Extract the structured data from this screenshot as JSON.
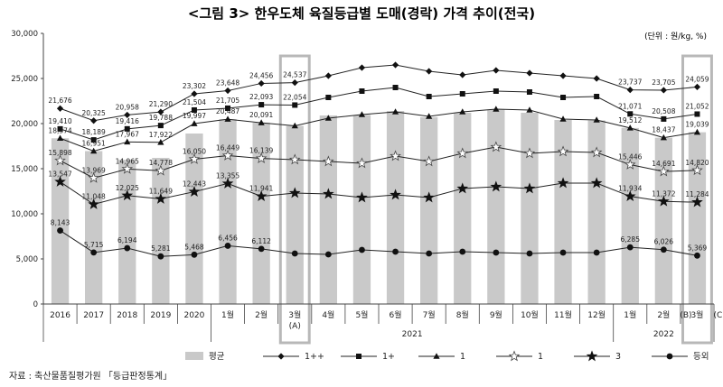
{
  "title": "<그림 3> 한우도체 육질등급별 도매(경락) 가격 추이(전국)",
  "unit": "(단위 : 원/kg, %)",
  "source": "자료 : 축산물품질평가원 「등급판정통계」",
  "chart_data": {
    "type": "line",
    "ylim": [
      0,
      30000
    ],
    "yticks": [
      "30,000",
      "25,000",
      "20,000",
      "15,000",
      "10,000",
      "5,000",
      "0"
    ],
    "grid": false,
    "legend_position": "bottom",
    "categories": [
      "2016",
      "2017",
      "2018",
      "2019",
      "2020",
      "1월",
      "2월",
      "3월",
      "4월",
      "5월",
      "6월",
      "7월",
      "8월",
      "9월",
      "10월",
      "11월",
      "12월",
      "1월",
      "2월",
      "3월"
    ],
    "category_notes": {
      "7": "(A)",
      "18": "(B)",
      "19": "(C)"
    },
    "year_labels": [
      {
        "label": "2021",
        "from": 5,
        "to": 16
      },
      {
        "label": "2022",
        "from": 17,
        "to": 19
      }
    ],
    "highlight_indices": [
      7,
      19
    ],
    "bar_series": {
      "name": "평균",
      "color": "#c9c9c9",
      "values": [
        18374,
        16951,
        16000,
        16200,
        18900,
        20487,
        20091,
        19750,
        20900,
        20950,
        21400,
        20700,
        21200,
        21550,
        21200,
        20400,
        20350,
        19512,
        18437,
        19039
      ]
    },
    "series": [
      {
        "name": "1++",
        "marker": "diamond",
        "values": [
          21676,
          20325,
          20958,
          21290,
          23302,
          23648,
          24456,
          24537,
          25300,
          26200,
          26500,
          25800,
          25400,
          25900,
          25600,
          25300,
          25000,
          23737,
          23705,
          24059
        ]
      },
      {
        "name": "1+",
        "marker": "square",
        "values": [
          19410,
          18189,
          19416,
          19788,
          21504,
          21705,
          22093,
          22054,
          22900,
          23600,
          24000,
          23000,
          23300,
          23600,
          23500,
          22900,
          23000,
          21071,
          20508,
          21052
        ]
      },
      {
        "name": "1",
        "marker": "triangle",
        "values": [
          18374,
          16951,
          17967,
          17922,
          19997,
          20487,
          20091,
          19750,
          20600,
          21000,
          21300,
          20800,
          21300,
          21600,
          21500,
          20500,
          20400,
          19512,
          18437,
          19039
        ]
      },
      {
        "name": "1",
        "marker": "star-open",
        "values": [
          15898,
          13969,
          14965,
          14778,
          16050,
          16449,
          16139,
          16000,
          15800,
          15600,
          16400,
          15800,
          16700,
          17400,
          16700,
          16900,
          16800,
          15446,
          14691,
          14820
        ]
      },
      {
        "name": "3",
        "marker": "star",
        "values": [
          13547,
          11048,
          12025,
          11649,
          12443,
          13355,
          11941,
          12300,
          12200,
          11800,
          12100,
          11800,
          12800,
          13000,
          12800,
          13400,
          13400,
          11934,
          11372,
          11284
        ]
      },
      {
        "name": "등외",
        "marker": "circle",
        "values": [
          8143,
          5715,
          6194,
          5281,
          5468,
          6456,
          6112,
          5600,
          5500,
          6000,
          5800,
          5600,
          5800,
          5700,
          5600,
          5700,
          5700,
          6285,
          6026,
          5369
        ]
      }
    ],
    "data_labels": {
      "0": [
        "21,676",
        "19,410",
        "18,374",
        "15,898",
        "13,547",
        "8,143"
      ],
      "1": [
        "20,325",
        "18,189",
        "16,951",
        "13,969",
        "11,048",
        "5,715"
      ],
      "2": [
        "20,958",
        "19,416",
        "17,967",
        "14,965",
        "12,025",
        "6,194"
      ],
      "3": [
        "21,290",
        "19,788",
        "17,922",
        "14,778",
        "11,649",
        "5,281"
      ],
      "4": [
        "23,302",
        "21,504",
        "19,997",
        "16,050",
        "12,443",
        "5,468"
      ],
      "5": [
        "23,648",
        "21,705",
        "20,487",
        "16,449",
        "13,355",
        "6,456"
      ],
      "6": [
        "24,456",
        "22,093",
        "20,091",
        "16,139",
        "11,941",
        "6,112"
      ],
      "7": [
        "24,537",
        "22,054"
      ],
      "17": [
        "23,737",
        "21,071",
        "19,512",
        "15,446",
        "11,934",
        "6,285"
      ],
      "18": [
        "23,705",
        "20,508",
        "18,437",
        "14,691",
        "11,372",
        "6,026"
      ],
      "19": [
        "24,059",
        "21,052",
        "19,039",
        "14,820",
        "11,284",
        "5,369"
      ]
    }
  }
}
